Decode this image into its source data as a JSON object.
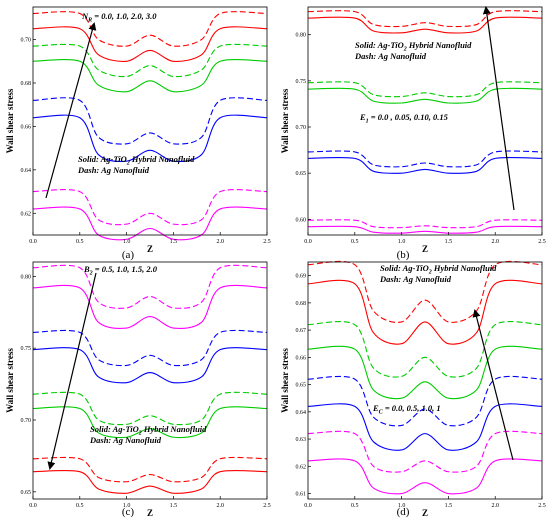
{
  "chart_data": [
    {
      "type": "line",
      "panel_label": "(a)",
      "xlabel": "Z",
      "ylabel": "Wall shear stress",
      "xlim": [
        0,
        2.5
      ],
      "ylim": [
        0.61,
        0.715
      ],
      "xticks": [
        "0.0",
        "0.5",
        "1.0",
        "1.5",
        "2.0",
        "2.5"
      ],
      "yticks": [
        "0.62",
        "0.64",
        "0.66",
        "0.68",
        "0.70"
      ],
      "ytick_values": [
        0.62,
        0.64,
        0.66,
        0.68,
        0.7
      ],
      "param_label": "N",
      "param_sub": "R",
      "param_values": " = 0.0, 1.0, 2.0, 3.0",
      "legend_solid": "Solid: Ag-TiO",
      "legend_solid_sub": "2",
      "legend_solid_rest": " Hybrid Nanofluid",
      "legend_dash": "Dash: Ag Nanofluid",
      "x": [
        0,
        0.5,
        0.7,
        1.0,
        1.25,
        1.5,
        1.8,
        2.0,
        2.5
      ],
      "series": [
        {
          "style": "solid",
          "color": "#ff00ff",
          "values": [
            0.622,
            0.622,
            0.61,
            0.608,
            0.613,
            0.608,
            0.61,
            0.622,
            0.622
          ]
        },
        {
          "style": "dashed",
          "color": "#ff00ff",
          "values": [
            0.63,
            0.63,
            0.617,
            0.615,
            0.62,
            0.615,
            0.617,
            0.63,
            0.63
          ]
        },
        {
          "style": "solid",
          "color": "#0000ff",
          "values": [
            0.664,
            0.664,
            0.647,
            0.644,
            0.649,
            0.644,
            0.647,
            0.664,
            0.664
          ]
        },
        {
          "style": "dashed",
          "color": "#0000ff",
          "values": [
            0.672,
            0.672,
            0.655,
            0.652,
            0.657,
            0.652,
            0.655,
            0.672,
            0.672
          ]
        },
        {
          "style": "solid",
          "color": "#00cc00",
          "values": [
            0.69,
            0.69,
            0.679,
            0.676,
            0.681,
            0.676,
            0.679,
            0.69,
            0.69
          ]
        },
        {
          "style": "dashed",
          "color": "#00cc00",
          "values": [
            0.697,
            0.697,
            0.686,
            0.683,
            0.688,
            0.683,
            0.686,
            0.697,
            0.697
          ]
        },
        {
          "style": "solid",
          "color": "#ff0000",
          "values": [
            0.705,
            0.705,
            0.693,
            0.69,
            0.695,
            0.69,
            0.693,
            0.705,
            0.705
          ]
        },
        {
          "style": "dashed",
          "color": "#ff0000",
          "values": [
            0.712,
            0.712,
            0.7,
            0.697,
            0.702,
            0.697,
            0.7,
            0.712,
            0.712
          ]
        }
      ]
    },
    {
      "type": "line",
      "panel_label": "(b)",
      "xlabel": "Z",
      "ylabel": "Wall shear stress",
      "xlim": [
        0,
        2.5
      ],
      "ylim": [
        0.583,
        0.83
      ],
      "xticks": [
        "0.0",
        "0.5",
        "1.0",
        "1.5",
        "2.0",
        "2.5"
      ],
      "yticks": [
        "0.60",
        "0.65",
        "0.70",
        "0.75",
        "0.80"
      ],
      "ytick_values": [
        0.6,
        0.65,
        0.7,
        0.75,
        0.8
      ],
      "param_label": "E",
      "param_sub": "1",
      "param_values": " = 0.0 , 0.05, 0.10, 0.15",
      "legend_solid": "Solid: Ag-TiO",
      "legend_solid_sub": "2",
      "legend_solid_rest": " Hybrid Nanofluid",
      "legend_dash": "Dash: Ag Nanofluid",
      "x": [
        0,
        0.5,
        0.7,
        1.0,
        1.25,
        1.5,
        1.8,
        2.0,
        2.5
      ],
      "series": [
        {
          "style": "solid",
          "color": "#ff00ff",
          "values": [
            0.592,
            0.592,
            0.586,
            0.585,
            0.587,
            0.585,
            0.586,
            0.592,
            0.592
          ]
        },
        {
          "style": "dashed",
          "color": "#ff00ff",
          "values": [
            0.599,
            0.599,
            0.592,
            0.591,
            0.593,
            0.591,
            0.592,
            0.599,
            0.599
          ]
        },
        {
          "style": "solid",
          "color": "#0000ff",
          "values": [
            0.666,
            0.666,
            0.652,
            0.65,
            0.654,
            0.65,
            0.652,
            0.666,
            0.666
          ]
        },
        {
          "style": "dashed",
          "color": "#0000ff",
          "values": [
            0.673,
            0.673,
            0.659,
            0.657,
            0.661,
            0.657,
            0.659,
            0.673,
            0.673
          ]
        },
        {
          "style": "solid",
          "color": "#00cc00",
          "values": [
            0.741,
            0.741,
            0.728,
            0.726,
            0.73,
            0.726,
            0.728,
            0.741,
            0.741
          ]
        },
        {
          "style": "dashed",
          "color": "#00cc00",
          "values": [
            0.748,
            0.748,
            0.735,
            0.733,
            0.737,
            0.733,
            0.735,
            0.748,
            0.748
          ]
        },
        {
          "style": "solid",
          "color": "#ff0000",
          "values": [
            0.818,
            0.818,
            0.804,
            0.802,
            0.806,
            0.802,
            0.804,
            0.818,
            0.818
          ]
        },
        {
          "style": "dashed",
          "color": "#ff0000",
          "values": [
            0.825,
            0.825,
            0.811,
            0.809,
            0.813,
            0.809,
            0.811,
            0.825,
            0.825
          ]
        }
      ]
    },
    {
      "type": "line",
      "panel_label": "(c)",
      "xlabel": "Z",
      "ylabel": "Wall shear stress",
      "xlim": [
        0,
        2.5
      ],
      "ylim": [
        0.645,
        0.81
      ],
      "xticks": [
        "0.0",
        "0.5",
        "1.0",
        "1.5",
        "2.0",
        "2.5"
      ],
      "yticks": [
        "0.65",
        "0.70",
        "0.75",
        "0.80"
      ],
      "ytick_values": [
        0.65,
        0.7,
        0.75,
        0.8
      ],
      "param_label": "B",
      "param_sub": "2",
      "param_values": " = 0.5, 1.0, 1.5, 2.0",
      "legend_solid": "Solid: Ag-TiO",
      "legend_solid_sub": "2",
      "legend_solid_rest": " Hybrid Nanofluid",
      "legend_dash": "Dash: Ag Nanofluid",
      "x": [
        0,
        0.5,
        0.7,
        1.0,
        1.25,
        1.5,
        1.8,
        2.0,
        2.5
      ],
      "series": [
        {
          "style": "solid",
          "color": "#ff0000",
          "values": [
            0.664,
            0.664,
            0.652,
            0.649,
            0.654,
            0.649,
            0.652,
            0.664,
            0.664
          ]
        },
        {
          "style": "dashed",
          "color": "#ff0000",
          "values": [
            0.673,
            0.673,
            0.66,
            0.657,
            0.662,
            0.657,
            0.66,
            0.673,
            0.673
          ]
        },
        {
          "style": "solid",
          "color": "#00cc00",
          "values": [
            0.708,
            0.708,
            0.691,
            0.688,
            0.694,
            0.688,
            0.691,
            0.708,
            0.708
          ]
        },
        {
          "style": "dashed",
          "color": "#00cc00",
          "values": [
            0.718,
            0.718,
            0.7,
            0.697,
            0.703,
            0.697,
            0.7,
            0.718,
            0.718
          ]
        },
        {
          "style": "solid",
          "color": "#0000ff",
          "values": [
            0.749,
            0.749,
            0.73,
            0.726,
            0.733,
            0.726,
            0.73,
            0.749,
            0.749
          ]
        },
        {
          "style": "dashed",
          "color": "#0000ff",
          "values": [
            0.761,
            0.761,
            0.742,
            0.738,
            0.745,
            0.738,
            0.742,
            0.761,
            0.761
          ]
        },
        {
          "style": "solid",
          "color": "#ff00ff",
          "values": [
            0.792,
            0.792,
            0.768,
            0.764,
            0.772,
            0.764,
            0.768,
            0.792,
            0.792
          ]
        },
        {
          "style": "dashed",
          "color": "#ff00ff",
          "values": [
            0.806,
            0.806,
            0.782,
            0.778,
            0.786,
            0.778,
            0.782,
            0.806,
            0.806
          ]
        }
      ]
    },
    {
      "type": "line",
      "panel_label": "(d)",
      "xlabel": "Z",
      "ylabel": "Wall shear stress",
      "xlim": [
        0,
        2.5
      ],
      "ylim": [
        0.608,
        0.695
      ],
      "xticks": [
        "0.0",
        "0.5",
        "1.0",
        "1.5",
        "2.0",
        "2.5"
      ],
      "yticks": [
        "0.61",
        "0.62",
        "0.63",
        "0.64",
        "0.65",
        "0.66",
        "0.67",
        "0.68",
        "0.69"
      ],
      "ytick_values": [
        0.61,
        0.62,
        0.63,
        0.64,
        0.65,
        0.66,
        0.67,
        0.68,
        0.69
      ],
      "param_label": "E",
      "param_sub": "C",
      "param_values": " = 0.0, 0.5, 1.0, 1",
      "legend_solid": "Solid: Ag-TiO",
      "legend_solid_sub": "2",
      "legend_solid_rest": " Hybrid Nanofluid",
      "legend_dash": "Dash: Ag Nanofluid",
      "x": [
        0,
        0.5,
        0.7,
        1.0,
        1.25,
        1.5,
        1.8,
        2.0,
        2.5
      ],
      "series": [
        {
          "style": "solid",
          "color": "#ff00ff",
          "values": [
            0.622,
            0.622,
            0.612,
            0.61,
            0.614,
            0.61,
            0.612,
            0.622,
            0.622
          ]
        },
        {
          "style": "dashed",
          "color": "#ff00ff",
          "values": [
            0.632,
            0.632,
            0.62,
            0.618,
            0.622,
            0.618,
            0.62,
            0.632,
            0.632
          ]
        },
        {
          "style": "solid",
          "color": "#0000ff",
          "values": [
            0.642,
            0.642,
            0.629,
            0.626,
            0.632,
            0.626,
            0.629,
            0.642,
            0.642
          ]
        },
        {
          "style": "dashed",
          "color": "#0000ff",
          "values": [
            0.652,
            0.652,
            0.638,
            0.635,
            0.641,
            0.635,
            0.638,
            0.652,
            0.652
          ]
        },
        {
          "style": "solid",
          "color": "#00cc00",
          "values": [
            0.663,
            0.663,
            0.648,
            0.645,
            0.651,
            0.645,
            0.648,
            0.663,
            0.663
          ]
        },
        {
          "style": "dashed",
          "color": "#00cc00",
          "values": [
            0.672,
            0.672,
            0.656,
            0.653,
            0.66,
            0.653,
            0.656,
            0.672,
            0.672
          ]
        },
        {
          "style": "solid",
          "color": "#ff0000",
          "values": [
            0.687,
            0.687,
            0.669,
            0.665,
            0.673,
            0.665,
            0.669,
            0.687,
            0.687
          ]
        },
        {
          "style": "dashed",
          "color": "#ff0000",
          "values": [
            0.694,
            0.694,
            0.677,
            0.673,
            0.681,
            0.673,
            0.677,
            0.694,
            0.694
          ]
        }
      ]
    }
  ]
}
